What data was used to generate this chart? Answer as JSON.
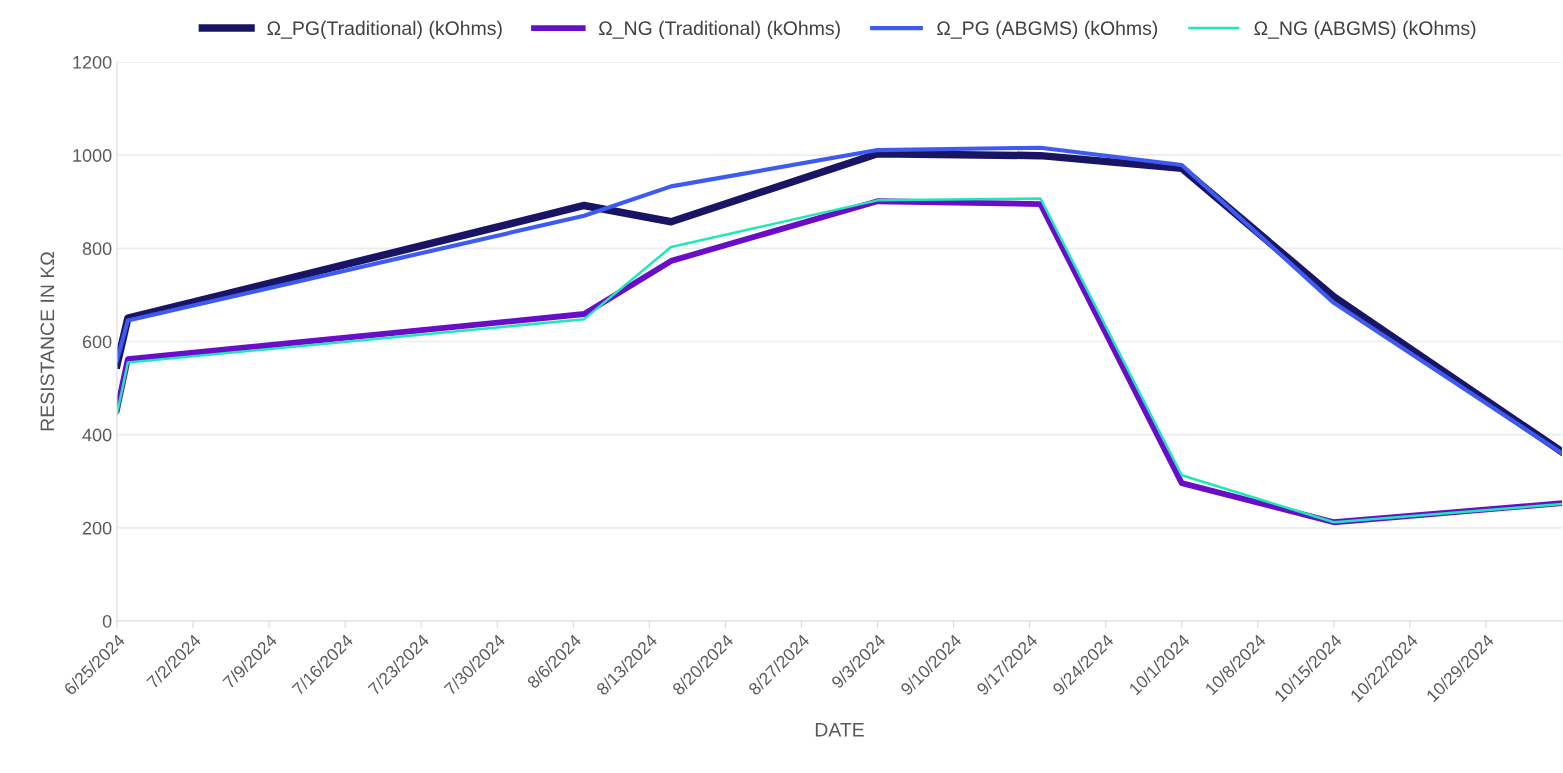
{
  "chart_data": {
    "type": "line",
    "xlabel": "DATE",
    "ylabel": "RESISTANCE IN KΩ",
    "x": [
      "2024-06-25",
      "2024-06-26",
      "2024-08-07",
      "2024-08-15",
      "2024-09-03",
      "2024-09-18",
      "2024-10-01",
      "2024-10-15",
      "2024-11-05"
    ],
    "series": [
      {
        "name": "Ω_PG(Traditional) (kOhms)",
        "color": "#1a1464",
        "values": [
          550,
          650,
          892,
          857,
          1003,
          999,
          972,
          696,
          363
        ]
      },
      {
        "name": "Ω_NG (Traditional) (kOhms)",
        "color": "#6a0dc8",
        "values": [
          453,
          562,
          659,
          773,
          901,
          895,
          296,
          212,
          253
        ]
      },
      {
        "name": "Ω_PG (ABGMS) (kOhms)",
        "color": "#3d5af1",
        "values": [
          560,
          645,
          870,
          933,
          1011,
          1016,
          979,
          683,
          360
        ]
      },
      {
        "name": "Ω_NG (ABGMS) (kOhms)",
        "color": "#1de9b6",
        "values": [
          445,
          555,
          648,
          803,
          903,
          907,
          313,
          212,
          251
        ]
      }
    ],
    "xlim": [
      "2024-06-25",
      "2024-11-05"
    ],
    "xticks": [
      {
        "value": "2024-06-25",
        "label": "6/25/2024"
      },
      {
        "value": "2024-07-02",
        "label": "7/2/2024"
      },
      {
        "value": "2024-07-09",
        "label": "7/9/2024"
      },
      {
        "value": "2024-07-16",
        "label": "7/16/2024"
      },
      {
        "value": "2024-07-23",
        "label": "7/23/2024"
      },
      {
        "value": "2024-07-30",
        "label": "7/30/2024"
      },
      {
        "value": "2024-08-06",
        "label": "8/6/2024"
      },
      {
        "value": "2024-08-13",
        "label": "8/13/2024"
      },
      {
        "value": "2024-08-20",
        "label": "8/20/2024"
      },
      {
        "value": "2024-08-27",
        "label": "8/27/2024"
      },
      {
        "value": "2024-09-03",
        "label": "9/3/2024"
      },
      {
        "value": "2024-09-10",
        "label": "9/10/2024"
      },
      {
        "value": "2024-09-17",
        "label": "9/17/2024"
      },
      {
        "value": "2024-09-24",
        "label": "9/24/2024"
      },
      {
        "value": "2024-10-01",
        "label": "10/1/2024"
      },
      {
        "value": "2024-10-08",
        "label": "10/8/2024"
      },
      {
        "value": "2024-10-15",
        "label": "10/15/2024"
      },
      {
        "value": "2024-10-22",
        "label": "10/22/2024"
      },
      {
        "value": "2024-10-29",
        "label": "10/29/2024"
      }
    ],
    "ylim": [
      0,
      1200
    ],
    "yticks": [
      0,
      200,
      400,
      600,
      800,
      1000,
      1200
    ],
    "grid": "y",
    "legend": "top",
    "marker": "none",
    "line_style": "solid"
  }
}
